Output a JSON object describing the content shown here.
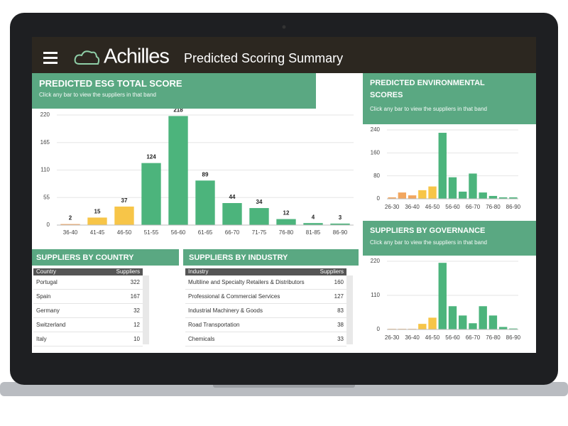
{
  "header": {
    "logo": "Achilles",
    "title": "Predicted Scoring Summary"
  },
  "chart_data": [
    {
      "type": "bar",
      "title": "PREDICTED ESG TOTAL SCORE",
      "subtitle": "Click any bar to view the suppliers in that band",
      "categories": [
        "36-40",
        "41-45",
        "46-50",
        "51-55",
        "56-60",
        "61-65",
        "66-70",
        "71-75",
        "76-80",
        "81-85",
        "86-90"
      ],
      "values": [
        2,
        15,
        37,
        124,
        218,
        89,
        44,
        34,
        12,
        4,
        3
      ],
      "colors": [
        "#f2a65e",
        "#f7c548",
        "#f7c548",
        "#4cb47c",
        "#4cb47c",
        "#4cb47c",
        "#4cb47c",
        "#4cb47c",
        "#4cb47c",
        "#4cb47c",
        "#4cb47c"
      ],
      "ylim": [
        0,
        220
      ],
      "yticks": [
        0,
        55,
        110,
        165,
        220
      ],
      "grid": true,
      "data_labels": true
    },
    {
      "type": "bar",
      "title": "PREDICTED ENVIRONMENTAL SCORES",
      "subtitle": "Click any bar to view the suppliers in that band",
      "categories": [
        "26-30",
        null,
        "36-40",
        null,
        "46-50",
        null,
        "56-60",
        null,
        "66-70",
        null,
        "76-80",
        null,
        "86-90"
      ],
      "values": [
        5,
        22,
        12,
        30,
        43,
        230,
        75,
        25,
        88,
        22,
        10,
        5,
        5
      ],
      "colors": [
        "#f2a65e",
        "#f2a65e",
        "#f2a65e",
        "#f7c548",
        "#f7c548",
        "#4cb47c",
        "#4cb47c",
        "#4cb47c",
        "#4cb47c",
        "#4cb47c",
        "#4cb47c",
        "#4cb47c",
        "#4cb47c"
      ],
      "ylim": [
        0,
        240
      ],
      "yticks": [
        0,
        80,
        160,
        240
      ],
      "grid": true,
      "data_labels": false
    },
    {
      "type": "bar",
      "title": "SUPPLIERS BY GOVERNANCE",
      "subtitle": "Click any bar to view the suppliers in that band",
      "categories": [
        "26-30",
        null,
        "36-40",
        null,
        "46-50",
        null,
        "56-60",
        null,
        "66-70",
        null,
        "76-80",
        null,
        "86-90"
      ],
      "values": [
        2,
        2,
        2,
        18,
        38,
        215,
        75,
        45,
        20,
        75,
        45,
        8,
        3
      ],
      "colors": [
        "#f2a65e",
        "#f2a65e",
        "#f2a65e",
        "#f7c548",
        "#f7c548",
        "#4cb47c",
        "#4cb47c",
        "#4cb47c",
        "#4cb47c",
        "#4cb47c",
        "#4cb47c",
        "#4cb47c",
        "#4cb47c"
      ],
      "ylim": [
        0,
        220
      ],
      "yticks": [
        0,
        110,
        220
      ],
      "grid": true,
      "data_labels": false
    }
  ],
  "tables": [
    {
      "title": "SUPPLIERS BY COUNTRY",
      "columns": [
        "Country",
        "Suppliers"
      ],
      "rows": [
        [
          "Portugal",
          322
        ],
        [
          "Spain",
          167
        ],
        [
          "Germany",
          32
        ],
        [
          "Switzerland",
          12
        ],
        [
          "Italy",
          10
        ]
      ]
    },
    {
      "title": "SUPPLIERS BY INDUSTRY",
      "columns": [
        "Industry",
        "Suppliers"
      ],
      "rows": [
        [
          "Multiline and Specialty Retailers & Distributors",
          160
        ],
        [
          "Professional & Commercial Services",
          127
        ],
        [
          "Industrial Machinery & Goods",
          83
        ],
        [
          "Road Transportation",
          38
        ],
        [
          "Chemicals",
          33
        ]
      ]
    }
  ]
}
